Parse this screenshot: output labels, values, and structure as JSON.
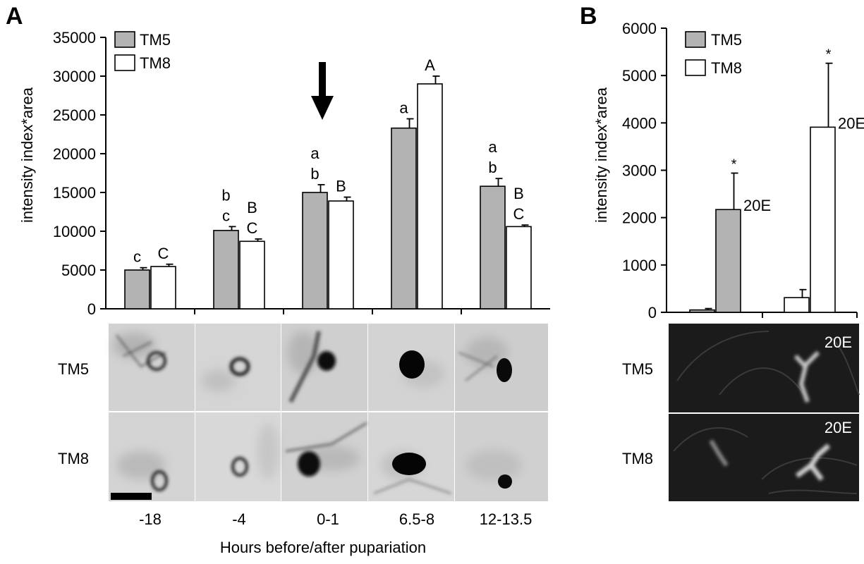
{
  "panels": [
    {
      "letter": "A",
      "chart_data": {
        "type": "bar",
        "ylabel": "intensity index*area",
        "xlabel": "Hours before/after pupariation",
        "ylim": [
          0,
          35000
        ],
        "yticks": [
          0,
          5000,
          10000,
          15000,
          20000,
          25000,
          30000,
          35000
        ],
        "categories": [
          "-18",
          "-4",
          "0-1",
          "6.5-8",
          "12-13.5"
        ],
        "legend": "top-left",
        "series": [
          {
            "name": "TM5",
            "color": "#b3b3b3",
            "values": [
              5000,
              10100,
              15000,
              23300,
              15800
            ],
            "errors": [
              300,
              500,
              1000,
              1200,
              1000
            ],
            "labels": [
              [
                "c"
              ],
              [
                "b",
                "c"
              ],
              [
                "a",
                "b"
              ],
              [
                "a"
              ],
              [
                "a",
                "b"
              ]
            ]
          },
          {
            "name": "TM8",
            "color": "#ffffff",
            "values": [
              5450,
              8700,
              13900,
              29000,
              10600
            ],
            "errors": [
              300,
              300,
              500,
              1000,
              200
            ],
            "labels": [
              [
                "C"
              ],
              [
                "B",
                "C"
              ],
              [
                "B"
              ],
              [
                "A"
              ],
              [
                "B",
                "C"
              ]
            ]
          }
        ],
        "annotation": "arrow-down over 0-1",
        "image_rows": [
          "TM5",
          "TM8"
        ]
      }
    },
    {
      "letter": "B",
      "chart_data": {
        "type": "bar",
        "ylabel": "intensity index*area",
        "ylim": [
          0,
          6000
        ],
        "yticks": [
          0,
          1000,
          2000,
          3000,
          4000,
          5000,
          6000
        ],
        "legend": "top-left",
        "series": [
          {
            "name": "TM5",
            "color": "#b3b3b3",
            "values": [
              50,
              2170
            ],
            "errors": [
              30,
              770
            ],
            "stars": [
              "",
              "*"
            ],
            "treatment": [
              "",
              "20E"
            ]
          },
          {
            "name": "TM8",
            "color": "#ffffff",
            "values": [
              310,
              3910
            ],
            "errors": [
              170,
              1350
            ],
            "stars": [
              "",
              "*"
            ],
            "treatment": [
              "",
              "20E"
            ]
          }
        ],
        "image_rows": [
          "TM5",
          "TM8"
        ],
        "image_labels": [
          "20E",
          "20E"
        ]
      }
    }
  ]
}
